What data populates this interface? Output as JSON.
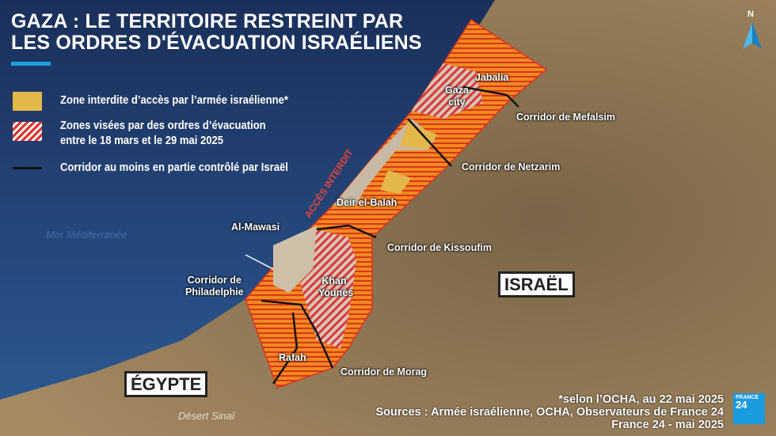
{
  "title": {
    "line1": "GAZA : LE TERRITOIRE RESTREINT PAR",
    "line2": "LES ORDRES D'ÉVACUATION ISRAÉLIENS"
  },
  "legend": [
    {
      "label": "Zone interdite d’accès par l’armée israélienne*",
      "color": "#e2b84a"
    },
    {
      "label": "Zones visées par des ordres d’évacuation",
      "label2": "entre le 18 mars et le 29 mai 2025",
      "color": "#e0322e"
    },
    {
      "label": "Corridor au moins en partie contrôlé par Israël",
      "color": "#111111"
    }
  ],
  "map": {
    "access_banner": "ACCÈS INTERDIT",
    "sea": "Mer Méditerranée",
    "places": {
      "jabalia": "Jabalia",
      "gaza_city": "Gaza city",
      "deir": "Deir el-Balah",
      "mawasi": "Al-Mawasi",
      "khan": "Khan Younès",
      "rafah": "Rafah",
      "sinai": "Désert Sinaï"
    },
    "corridors": {
      "mefalsim": "Corridor de Mefalsim",
      "netzarim": "Corridor de Netzarim",
      "kissoufim": "Corridor de Kissoufim",
      "philadelphie1": "Corridor de",
      "philadelphie2": "Philadelphie",
      "morag": "Corridor de Morag"
    },
    "countries": {
      "israel": "ISRAËL",
      "egypt": "ÉGYPTE"
    },
    "north": "N"
  },
  "sources": {
    "note": "*selon l’OCHA, au 22 mai 2025",
    "line": "Sources : Armée israélienne, OCHA, Observateurs de France 24",
    "credit": "France 24 - mai 2025"
  },
  "logo": {
    "line1": "FRANCE",
    "line2": "24"
  },
  "colors": {
    "sea": "#1f3d6e",
    "accent": "#1aa1e1",
    "orange": "#ef7a1e"
  }
}
